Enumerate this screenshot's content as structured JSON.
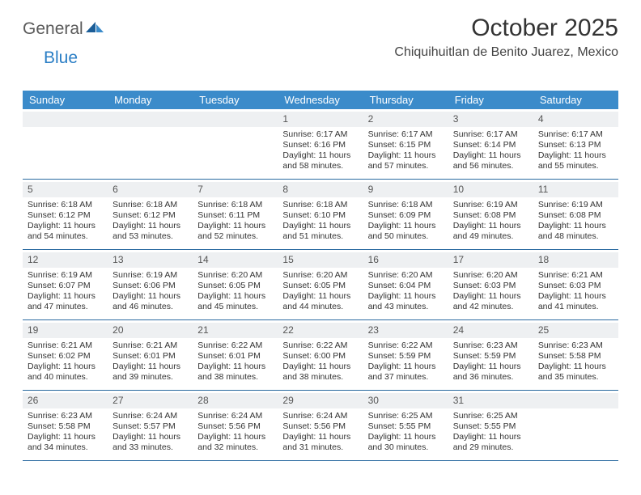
{
  "logo": {
    "text1": "General",
    "text2": "Blue"
  },
  "title": "October 2025",
  "location": "Chiquihuitlan de Benito Juarez, Mexico",
  "colors": {
    "header_bg": "#3b8bca",
    "header_text": "#ffffff",
    "daynum_bg": "#eef0f2",
    "rule": "#2a6aa0",
    "logo_gray": "#5a5a5a",
    "logo_blue": "#2a7ec5",
    "page_bg": "#ffffff",
    "text": "#333333"
  },
  "fonts": {
    "title_size": 30,
    "location_size": 16,
    "header_size": 13,
    "cell_size": 10.5
  },
  "day_names": [
    "Sunday",
    "Monday",
    "Tuesday",
    "Wednesday",
    "Thursday",
    "Friday",
    "Saturday"
  ],
  "weeks": [
    [
      null,
      null,
      null,
      {
        "n": "1",
        "sr": "Sunrise: 6:17 AM",
        "ss": "Sunset: 6:16 PM",
        "dl": "Daylight: 11 hours and 58 minutes."
      },
      {
        "n": "2",
        "sr": "Sunrise: 6:17 AM",
        "ss": "Sunset: 6:15 PM",
        "dl": "Daylight: 11 hours and 57 minutes."
      },
      {
        "n": "3",
        "sr": "Sunrise: 6:17 AM",
        "ss": "Sunset: 6:14 PM",
        "dl": "Daylight: 11 hours and 56 minutes."
      },
      {
        "n": "4",
        "sr": "Sunrise: 6:17 AM",
        "ss": "Sunset: 6:13 PM",
        "dl": "Daylight: 11 hours and 55 minutes."
      }
    ],
    [
      {
        "n": "5",
        "sr": "Sunrise: 6:18 AM",
        "ss": "Sunset: 6:12 PM",
        "dl": "Daylight: 11 hours and 54 minutes."
      },
      {
        "n": "6",
        "sr": "Sunrise: 6:18 AM",
        "ss": "Sunset: 6:12 PM",
        "dl": "Daylight: 11 hours and 53 minutes."
      },
      {
        "n": "7",
        "sr": "Sunrise: 6:18 AM",
        "ss": "Sunset: 6:11 PM",
        "dl": "Daylight: 11 hours and 52 minutes."
      },
      {
        "n": "8",
        "sr": "Sunrise: 6:18 AM",
        "ss": "Sunset: 6:10 PM",
        "dl": "Daylight: 11 hours and 51 minutes."
      },
      {
        "n": "9",
        "sr": "Sunrise: 6:18 AM",
        "ss": "Sunset: 6:09 PM",
        "dl": "Daylight: 11 hours and 50 minutes."
      },
      {
        "n": "10",
        "sr": "Sunrise: 6:19 AM",
        "ss": "Sunset: 6:08 PM",
        "dl": "Daylight: 11 hours and 49 minutes."
      },
      {
        "n": "11",
        "sr": "Sunrise: 6:19 AM",
        "ss": "Sunset: 6:08 PM",
        "dl": "Daylight: 11 hours and 48 minutes."
      }
    ],
    [
      {
        "n": "12",
        "sr": "Sunrise: 6:19 AM",
        "ss": "Sunset: 6:07 PM",
        "dl": "Daylight: 11 hours and 47 minutes."
      },
      {
        "n": "13",
        "sr": "Sunrise: 6:19 AM",
        "ss": "Sunset: 6:06 PM",
        "dl": "Daylight: 11 hours and 46 minutes."
      },
      {
        "n": "14",
        "sr": "Sunrise: 6:20 AM",
        "ss": "Sunset: 6:05 PM",
        "dl": "Daylight: 11 hours and 45 minutes."
      },
      {
        "n": "15",
        "sr": "Sunrise: 6:20 AM",
        "ss": "Sunset: 6:05 PM",
        "dl": "Daylight: 11 hours and 44 minutes."
      },
      {
        "n": "16",
        "sr": "Sunrise: 6:20 AM",
        "ss": "Sunset: 6:04 PM",
        "dl": "Daylight: 11 hours and 43 minutes."
      },
      {
        "n": "17",
        "sr": "Sunrise: 6:20 AM",
        "ss": "Sunset: 6:03 PM",
        "dl": "Daylight: 11 hours and 42 minutes."
      },
      {
        "n": "18",
        "sr": "Sunrise: 6:21 AM",
        "ss": "Sunset: 6:03 PM",
        "dl": "Daylight: 11 hours and 41 minutes."
      }
    ],
    [
      {
        "n": "19",
        "sr": "Sunrise: 6:21 AM",
        "ss": "Sunset: 6:02 PM",
        "dl": "Daylight: 11 hours and 40 minutes."
      },
      {
        "n": "20",
        "sr": "Sunrise: 6:21 AM",
        "ss": "Sunset: 6:01 PM",
        "dl": "Daylight: 11 hours and 39 minutes."
      },
      {
        "n": "21",
        "sr": "Sunrise: 6:22 AM",
        "ss": "Sunset: 6:01 PM",
        "dl": "Daylight: 11 hours and 38 minutes."
      },
      {
        "n": "22",
        "sr": "Sunrise: 6:22 AM",
        "ss": "Sunset: 6:00 PM",
        "dl": "Daylight: 11 hours and 38 minutes."
      },
      {
        "n": "23",
        "sr": "Sunrise: 6:22 AM",
        "ss": "Sunset: 5:59 PM",
        "dl": "Daylight: 11 hours and 37 minutes."
      },
      {
        "n": "24",
        "sr": "Sunrise: 6:23 AM",
        "ss": "Sunset: 5:59 PM",
        "dl": "Daylight: 11 hours and 36 minutes."
      },
      {
        "n": "25",
        "sr": "Sunrise: 6:23 AM",
        "ss": "Sunset: 5:58 PM",
        "dl": "Daylight: 11 hours and 35 minutes."
      }
    ],
    [
      {
        "n": "26",
        "sr": "Sunrise: 6:23 AM",
        "ss": "Sunset: 5:58 PM",
        "dl": "Daylight: 11 hours and 34 minutes."
      },
      {
        "n": "27",
        "sr": "Sunrise: 6:24 AM",
        "ss": "Sunset: 5:57 PM",
        "dl": "Daylight: 11 hours and 33 minutes."
      },
      {
        "n": "28",
        "sr": "Sunrise: 6:24 AM",
        "ss": "Sunset: 5:56 PM",
        "dl": "Daylight: 11 hours and 32 minutes."
      },
      {
        "n": "29",
        "sr": "Sunrise: 6:24 AM",
        "ss": "Sunset: 5:56 PM",
        "dl": "Daylight: 11 hours and 31 minutes."
      },
      {
        "n": "30",
        "sr": "Sunrise: 6:25 AM",
        "ss": "Sunset: 5:55 PM",
        "dl": "Daylight: 11 hours and 30 minutes."
      },
      {
        "n": "31",
        "sr": "Sunrise: 6:25 AM",
        "ss": "Sunset: 5:55 PM",
        "dl": "Daylight: 11 hours and 29 minutes."
      },
      null
    ]
  ]
}
